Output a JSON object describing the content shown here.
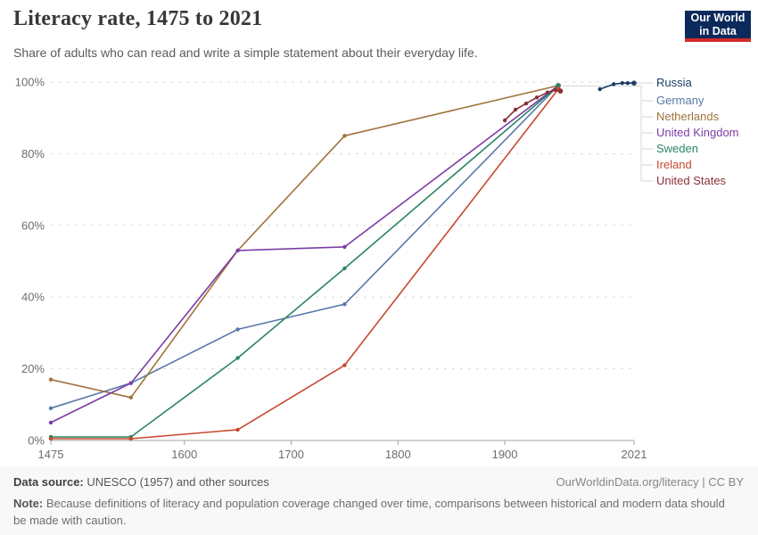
{
  "header": {
    "title": "Literacy rate, 1475 to 2021",
    "subtitle": "Share of adults who can read and write a simple statement about their everyday life.",
    "logo_line1": "Our World",
    "logo_line2": "in Data"
  },
  "footer": {
    "datasource_label": "Data source:",
    "datasource_text": " UNESCO (1957) and other sources",
    "link_text": "OurWorldinData.org/literacy | CC BY",
    "note_label": "Note:",
    "note_text": " Because definitions of literacy and population coverage changed over time, comparisons between historical and modern data should be made with caution."
  },
  "chart_data": {
    "type": "line",
    "title": "Literacy rate, 1475 to 2021",
    "xlabel": "",
    "ylabel": "",
    "xlim": [
      1475,
      2021
    ],
    "ylim": [
      0,
      100
    ],
    "x_ticks": [
      1475,
      1600,
      1700,
      1800,
      1900,
      2021
    ],
    "y_ticks": [
      0,
      20,
      40,
      60,
      80,
      100
    ],
    "y_tick_suffix": "%",
    "grid": "horizontal-dashed",
    "legend_position": "right",
    "series": [
      {
        "name": "Russia",
        "color": "#1d3d63",
        "points": [
          [
            1989,
            98
          ],
          [
            2002,
            99.4
          ],
          [
            2010,
            99.7
          ],
          [
            2015,
            99.7
          ],
          [
            2021,
            99.7
          ]
        ]
      },
      {
        "name": "Germany",
        "color": "#5878a8",
        "points": [
          [
            1475,
            9
          ],
          [
            1550,
            16
          ],
          [
            1650,
            31
          ],
          [
            1750,
            38
          ],
          [
            1950,
            99
          ]
        ]
      },
      {
        "name": "Netherlands",
        "color": "#a0733c",
        "points": [
          [
            1475,
            17
          ],
          [
            1550,
            12
          ],
          [
            1650,
            53
          ],
          [
            1750,
            85
          ],
          [
            1950,
            99
          ]
        ]
      },
      {
        "name": "United Kingdom",
        "color": "#7c3ca6",
        "points": [
          [
            1475,
            5
          ],
          [
            1550,
            16
          ],
          [
            1650,
            53
          ],
          [
            1750,
            54
          ],
          [
            1950,
            99
          ]
        ]
      },
      {
        "name": "Sweden",
        "color": "#2c8465",
        "points": [
          [
            1475,
            1
          ],
          [
            1550,
            1
          ],
          [
            1650,
            23
          ],
          [
            1750,
            48
          ],
          [
            1950,
            99
          ]
        ]
      },
      {
        "name": "Ireland",
        "color": "#c7482f",
        "points": [
          [
            1475,
            0.5
          ],
          [
            1550,
            0.5
          ],
          [
            1650,
            3
          ],
          [
            1750,
            21
          ],
          [
            1950,
            98
          ]
        ]
      },
      {
        "name": "United States",
        "color": "#883039",
        "points": [
          [
            1900,
            89.3
          ],
          [
            1910,
            92.3
          ],
          [
            1920,
            94
          ],
          [
            1930,
            95.7
          ],
          [
            1940,
            97.1
          ],
          [
            1947,
            97.8
          ],
          [
            1952,
            97.5
          ]
        ]
      }
    ]
  }
}
